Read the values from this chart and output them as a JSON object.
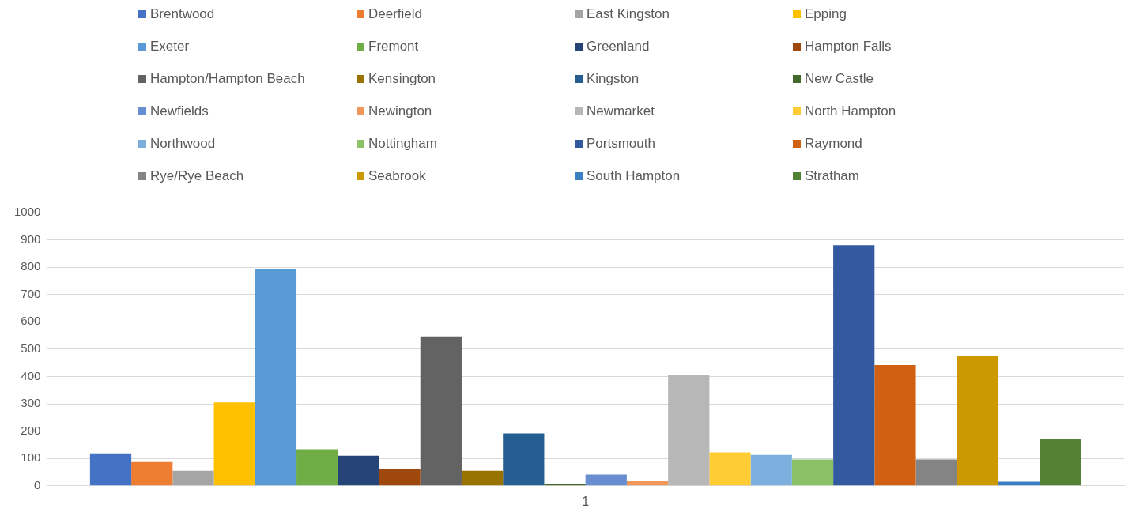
{
  "chart_data": {
    "type": "bar",
    "categories": [
      "1"
    ],
    "series": [
      {
        "name": "Brentwood",
        "color": "#4472c4",
        "values": [
          119
        ]
      },
      {
        "name": "Deerfield",
        "color": "#ed7d31",
        "values": [
          87
        ]
      },
      {
        "name": "East Kingston",
        "color": "#a5a5a5",
        "values": [
          55
        ]
      },
      {
        "name": "Epping",
        "color": "#ffc000",
        "values": [
          305
        ]
      },
      {
        "name": "Exeter",
        "color": "#5b9bd5",
        "values": [
          794
        ]
      },
      {
        "name": "Fremont",
        "color": "#70ad47",
        "values": [
          134
        ]
      },
      {
        "name": "Greenland",
        "color": "#264478",
        "values": [
          110
        ]
      },
      {
        "name": "Hampton Falls",
        "color": "#9e480e",
        "values": [
          61
        ]
      },
      {
        "name": "Hampton/Hampton Beach",
        "color": "#636363",
        "values": [
          547
        ]
      },
      {
        "name": "Kensington",
        "color": "#997300",
        "values": [
          55
        ]
      },
      {
        "name": "Kingston",
        "color": "#255e91",
        "values": [
          192
        ]
      },
      {
        "name": "New Castle",
        "color": "#43682b",
        "values": [
          8
        ]
      },
      {
        "name": "Newfields",
        "color": "#698ed0",
        "values": [
          41
        ]
      },
      {
        "name": "Newington",
        "color": "#f1975a",
        "values": [
          17
        ]
      },
      {
        "name": "Newmarket",
        "color": "#b7b7b7",
        "values": [
          407
        ]
      },
      {
        "name": "North Hampton",
        "color": "#ffcd33",
        "values": [
          122
        ]
      },
      {
        "name": "Northwood",
        "color": "#7cafdd",
        "values": [
          113
        ]
      },
      {
        "name": "Nottingham",
        "color": "#8cc168",
        "values": [
          96
        ]
      },
      {
        "name": "Portsmouth",
        "color": "#335aa1",
        "values": [
          881
        ]
      },
      {
        "name": "Raymond",
        "color": "#d26012",
        "values": [
          442
        ]
      },
      {
        "name": "Rye/Rye Beach",
        "color": "#848484",
        "values": [
          96
        ]
      },
      {
        "name": "Seabrook",
        "color": "#cc9a00",
        "values": [
          474
        ]
      },
      {
        "name": "South Hampton",
        "color": "#3a7fc4",
        "values": [
          15
        ]
      },
      {
        "name": "Stratham",
        "color": "#548235",
        "values": [
          172
        ]
      }
    ],
    "ylim": [
      0,
      1000
    ],
    "yticks": [
      0,
      100,
      200,
      300,
      400,
      500,
      600,
      700,
      800,
      900,
      1000
    ],
    "grid": "y",
    "legend": "top"
  }
}
